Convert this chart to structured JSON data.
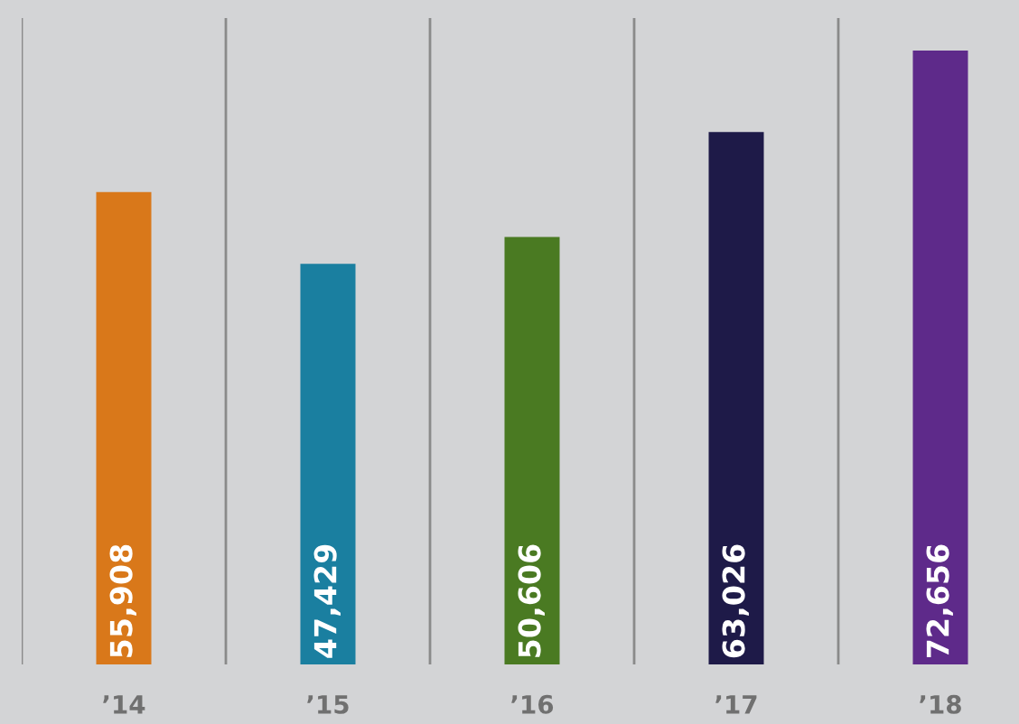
{
  "chart_data": {
    "type": "bar",
    "categories": [
      "’14",
      "’15",
      "’16",
      "’17",
      "’18"
    ],
    "values": [
      55908,
      47429,
      50606,
      63026,
      72656
    ],
    "colors": [
      "#d9781a",
      "#1a7fa0",
      "#4a7a22",
      "#1e1a48",
      "#5e2a8a"
    ],
    "value_labels": [
      "55,908",
      "47,429",
      "50,606",
      "63,026",
      "72,656"
    ],
    "grid": "x"
  }
}
